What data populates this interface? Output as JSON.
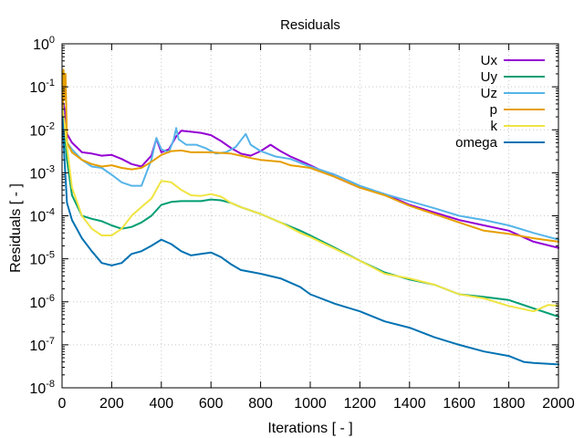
{
  "chart_data": {
    "type": "line",
    "title": "Residuals",
    "xlabel": "Iterations [ - ]",
    "ylabel": "Residuals [ - ]",
    "xlim": [
      0,
      2000
    ],
    "ylim": [
      1e-08,
      1
    ],
    "yscale": "log",
    "grid": true,
    "legend_position": "top-right",
    "xticks": [
      "0",
      "200",
      "400",
      "600",
      "800",
      "1000",
      "1200",
      "1400",
      "1600",
      "1800",
      "2000"
    ],
    "yticks": [
      {
        "base": "10",
        "exp": "-8"
      },
      {
        "base": "10",
        "exp": "-7"
      },
      {
        "base": "10",
        "exp": "-6"
      },
      {
        "base": "10",
        "exp": "-5"
      },
      {
        "base": "10",
        "exp": "-4"
      },
      {
        "base": "10",
        "exp": "-3"
      },
      {
        "base": "10",
        "exp": "-2"
      },
      {
        "base": "10",
        "exp": "-1"
      },
      {
        "base": "10",
        "exp": "0"
      }
    ],
    "series": [
      {
        "name": "Ux",
        "color": "#9400d3",
        "x": [
          2,
          10,
          20,
          40,
          80,
          120,
          160,
          200,
          240,
          280,
          320,
          360,
          380,
          400,
          430,
          460,
          480,
          520,
          560,
          600,
          640,
          680,
          720,
          760,
          800,
          840,
          880,
          920,
          960,
          1000,
          1100,
          1200,
          1300,
          1400,
          1500,
          1600,
          1700,
          1800,
          1900,
          2000
        ],
        "y": [
          0.05,
          0.03,
          0.008,
          0.005,
          0.003,
          0.0028,
          0.0025,
          0.0026,
          0.0021,
          0.0016,
          0.0014,
          0.0025,
          0.0062,
          0.003,
          0.0035,
          0.007,
          0.0095,
          0.009,
          0.0085,
          0.0075,
          0.0055,
          0.0038,
          0.0028,
          0.0025,
          0.0032,
          0.0045,
          0.0032,
          0.0024,
          0.0019,
          0.0015,
          0.0008,
          0.00045,
          0.00032,
          0.00018,
          0.00012,
          8e-05,
          6e-05,
          4.5e-05,
          2.5e-05,
          1.8e-05
        ]
      },
      {
        "name": "Uy",
        "color": "#009e73",
        "x": [
          2,
          10,
          20,
          40,
          80,
          120,
          160,
          200,
          240,
          280,
          320,
          360,
          400,
          440,
          480,
          520,
          560,
          600,
          640,
          680,
          720,
          800,
          880,
          960,
          1000,
          1100,
          1200,
          1300,
          1400,
          1500,
          1600,
          1700,
          1800,
          1900,
          2000
        ],
        "y": [
          0.03,
          0.01,
          0.002,
          0.0003,
          0.0001,
          8.5e-05,
          7.5e-05,
          6e-05,
          5e-05,
          5.5e-05,
          7e-05,
          0.0001,
          0.00018,
          0.00021,
          0.00022,
          0.00022,
          0.00022,
          0.00024,
          0.00023,
          0.0002,
          0.00016,
          0.00011,
          7e-05,
          4.5e-05,
          3.5e-05,
          1.8e-05,
          9e-06,
          4.8e-06,
          3.3e-06,
          2.5e-06,
          1.5e-06,
          1.3e-06,
          1.1e-06,
          7e-07,
          4.5e-07
        ]
      },
      {
        "name": "Uz",
        "color": "#56b4e9",
        "x": [
          2,
          10,
          20,
          40,
          80,
          120,
          160,
          200,
          240,
          280,
          320,
          360,
          380,
          400,
          430,
          450,
          460,
          470,
          500,
          540,
          580,
          620,
          660,
          700,
          740,
          760,
          800,
          860,
          920,
          960,
          1000,
          1100,
          1200,
          1300,
          1400,
          1500,
          1600,
          1700,
          1800,
          1900,
          2000
        ],
        "y": [
          0.05,
          0.01,
          0.005,
          0.0035,
          0.002,
          0.0014,
          0.0013,
          0.0009,
          0.0006,
          0.0005,
          0.0005,
          0.002,
          0.0065,
          0.0035,
          0.003,
          0.006,
          0.011,
          0.006,
          0.0045,
          0.0045,
          0.0037,
          0.0028,
          0.003,
          0.004,
          0.008,
          0.0045,
          0.0032,
          0.0024,
          0.0021,
          0.0017,
          0.0014,
          0.0009,
          0.0005,
          0.00032,
          0.00022,
          0.00015,
          0.0001,
          8e-05,
          6e-05,
          4e-05,
          2.8e-05
        ]
      },
      {
        "name": "p",
        "color": "#e69f00",
        "x": [
          2,
          6,
          10,
          14,
          20,
          40,
          80,
          120,
          160,
          200,
          240,
          280,
          320,
          360,
          400,
          440,
          480,
          520,
          560,
          600,
          640,
          680,
          720,
          760,
          800,
          840,
          880,
          920,
          960,
          1000,
          1100,
          1200,
          1300,
          1400,
          1500,
          1600,
          1700,
          1800,
          1900,
          2000
        ],
        "y": [
          0.02,
          0.25,
          0.05,
          0.2,
          0.005,
          0.003,
          0.002,
          0.0016,
          0.0014,
          0.0015,
          0.0013,
          0.0012,
          0.0013,
          0.0018,
          0.0026,
          0.0032,
          0.0033,
          0.003,
          0.003,
          0.003,
          0.0029,
          0.0028,
          0.0025,
          0.0022,
          0.002,
          0.0019,
          0.0018,
          0.0015,
          0.0014,
          0.0013,
          0.0008,
          0.00045,
          0.0003,
          0.00017,
          0.00011,
          7e-05,
          4.5e-05,
          3.8e-05,
          3e-05,
          2.5e-05
        ]
      },
      {
        "name": "k",
        "color": "#f0e442",
        "x": [
          2,
          10,
          20,
          40,
          80,
          120,
          160,
          200,
          240,
          280,
          320,
          360,
          400,
          440,
          480,
          520,
          560,
          600,
          640,
          680,
          720,
          800,
          880,
          960,
          1000,
          1100,
          1200,
          1300,
          1400,
          1500,
          1600,
          1700,
          1800,
          1900,
          1960,
          2000
        ],
        "y": [
          0.03,
          0.015,
          0.004,
          0.00045,
          0.0001,
          5e-05,
          3.5e-05,
          3.5e-05,
          5e-05,
          0.0001,
          0.00016,
          0.00025,
          0.00065,
          0.0006,
          0.0004,
          0.0003,
          0.00029,
          0.00032,
          0.00028,
          0.0002,
          0.00016,
          0.00011,
          7e-05,
          4e-05,
          3.2e-05,
          1.7e-05,
          9e-06,
          4.5e-06,
          3.5e-06,
          2.5e-06,
          1.5e-06,
          1.2e-06,
          8e-07,
          6e-07,
          8.5e-07,
          8e-07
        ]
      },
      {
        "name": "omega",
        "color": "#0072b2",
        "x": [
          2,
          10,
          20,
          40,
          80,
          120,
          160,
          200,
          240,
          280,
          320,
          360,
          400,
          440,
          480,
          520,
          560,
          600,
          640,
          680,
          720,
          800,
          880,
          960,
          1000,
          1100,
          1200,
          1300,
          1400,
          1500,
          1600,
          1700,
          1800,
          1860,
          1900,
          2000
        ],
        "y": [
          0.02,
          0.002,
          0.0002,
          8e-05,
          3e-05,
          1.5e-05,
          8e-06,
          7e-06,
          8e-06,
          1.3e-05,
          1.5e-05,
          2e-05,
          2.8e-05,
          2.2e-05,
          1.5e-05,
          1.2e-05,
          1.3e-05,
          1.4e-05,
          1.1e-05,
          7.5e-06,
          5.5e-06,
          4.5e-06,
          3.5e-06,
          2.2e-06,
          1.5e-06,
          9e-07,
          6e-07,
          3.5e-07,
          2.5e-07,
          1.5e-07,
          1e-07,
          7e-08,
          5.5e-08,
          4e-08,
          3.8e-08,
          3.5e-08
        ]
      }
    ]
  }
}
